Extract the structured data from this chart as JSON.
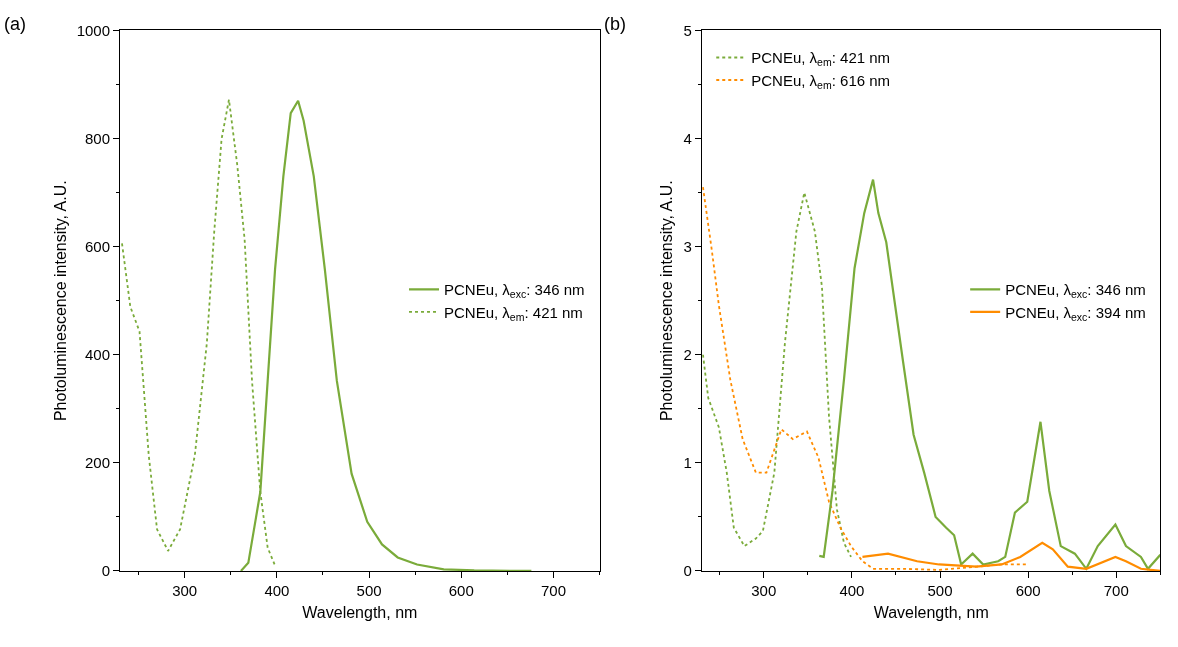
{
  "chart_data": [
    {
      "type": "line",
      "title": "(a)",
      "xlabel": "Wavelength, nm",
      "ylabel": "Photoluminescence intensity, A.U.",
      "xlim": [
        230,
        750
      ],
      "xticks": [
        300,
        400,
        500,
        600,
        700
      ],
      "ylim": [
        0,
        1000
      ],
      "yticks": [
        0,
        200,
        400,
        600,
        800,
        1000
      ],
      "legend": "right",
      "marker": "none",
      "series": [
        {
          "name": "PCNEu, λ$_{exc}$: 346 nm",
          "color": "#7aab3a",
          "line_style": "solid",
          "x": [
            361,
            369,
            382,
            390,
            398,
            407,
            415,
            423,
            429,
            440,
            452,
            465,
            481,
            498,
            514,
            531,
            552,
            581,
            614,
            676
          ],
          "values": [
            0,
            15,
            146,
            352,
            558,
            730,
            847,
            870,
            833,
            730,
            558,
            352,
            180,
            91,
            49,
            25,
            12,
            3,
            1,
            0
          ]
        },
        {
          "name": "PCNEu, λ$_{em}$: 421 nm",
          "color": "#7aab3a",
          "line_style": "dotted",
          "x": [
            232,
            241,
            251,
            255,
            261,
            270,
            282,
            295,
            311,
            324,
            332,
            340,
            348,
            357,
            365,
            373,
            382,
            390,
            398
          ],
          "values": [
            606,
            489,
            443,
            352,
            214,
            77,
            37,
            77,
            214,
            421,
            627,
            799,
            872,
            751,
            613,
            352,
            146,
            43,
            10
          ]
        }
      ]
    },
    {
      "type": "line",
      "title": "(b)",
      "xlabel": "Wavelength, nm",
      "ylabel": "Photoluminescence intensity, A.U.",
      "xlim": [
        230,
        750
      ],
      "xticks": [
        300,
        400,
        500,
        600,
        700
      ],
      "ylim": [
        0,
        5
      ],
      "yticks": [
        0,
        1,
        2,
        3,
        4,
        5
      ],
      "legend": [
        "top left",
        "right"
      ],
      "marker": "none",
      "series": [
        {
          "name": "PCNEu, λ$_{em}$: 421 nm",
          "color": "#7aab3a",
          "line_style": "dotted",
          "x": [
            231,
            237,
            249,
            258,
            266,
            278,
            291,
            299,
            312,
            324,
            337,
            346,
            358,
            366,
            374,
            383,
            391,
            399
          ],
          "values": [
            2.0,
            1.6,
            1.33,
            0.91,
            0.4,
            0.23,
            0.3,
            0.37,
            0.91,
            2.11,
            3.14,
            3.5,
            3.14,
            2.63,
            1.43,
            0.57,
            0.26,
            0.13
          ]
        },
        {
          "name": "PCNEu, λ$_{em}$: 616 nm",
          "color": "#ff8c00",
          "line_style": "dotted",
          "x": [
            231,
            241,
            249,
            262,
            276,
            291,
            303,
            320,
            333,
            349,
            362,
            374,
            387,
            399,
            412,
            424,
            457,
            499,
            541,
            570,
            599
          ],
          "values": [
            3.55,
            2.97,
            2.46,
            1.77,
            1.22,
            0.91,
            0.91,
            1.31,
            1.22,
            1.29,
            1.05,
            0.64,
            0.4,
            0.23,
            0.09,
            0.02,
            0.02,
            0.01,
            0.04,
            0.06,
            0.06
          ]
        },
        {
          "name": "PCNEu, λ$_{exc}$: 346 nm",
          "color": "#7aab3a",
          "line_style": "solid",
          "x": [
            363,
            368,
            378,
            391,
            403,
            414,
            424,
            430,
            439,
            449,
            458,
            470,
            482,
            495,
            507,
            516,
            524,
            537,
            549,
            566,
            574,
            585,
            599,
            614,
            624,
            637,
            653,
            666,
            679,
            699,
            711,
            728,
            736,
            750
          ],
          "values": [
            0.14,
            0.13,
            0.74,
            1.77,
            2.8,
            3.31,
            3.62,
            3.31,
            3.04,
            2.46,
            1.94,
            1.26,
            0.91,
            0.5,
            0.4,
            0.33,
            0.06,
            0.16,
            0.06,
            0.09,
            0.13,
            0.54,
            0.64,
            1.38,
            0.74,
            0.23,
            0.16,
            0.02,
            0.23,
            0.43,
            0.23,
            0.13,
            0.02,
            0.15
          ]
        },
        {
          "name": "PCNEu, λ$_{exc}$: 394 nm",
          "color": "#ff8c00",
          "line_style": "solid",
          "x": [
            412,
            441,
            474,
            499,
            541,
            570,
            591,
            616,
            628,
            645,
            666,
            699,
            711,
            728,
            750
          ],
          "values": [
            0.13,
            0.16,
            0.09,
            0.06,
            0.04,
            0.06,
            0.13,
            0.26,
            0.2,
            0.04,
            0.02,
            0.13,
            0.09,
            0.02,
            0
          ]
        }
      ]
    }
  ]
}
